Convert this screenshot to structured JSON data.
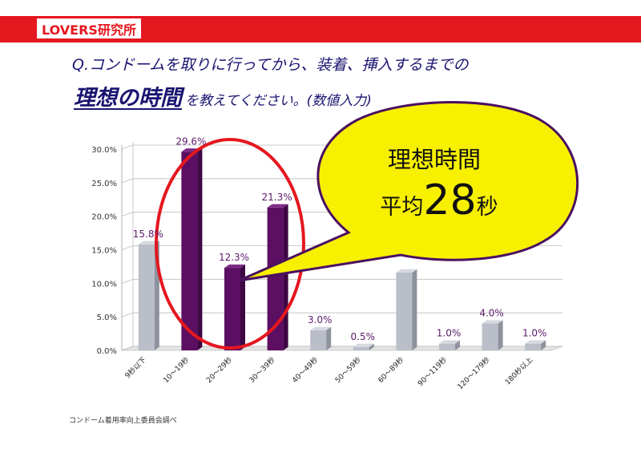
{
  "logo": {
    "text": "LOVERS研究所"
  },
  "question": {
    "line1": "Q.コンドームを取りに行ってから、装着、挿入するまでの",
    "line2_emphasis": "理想の時間",
    "line2_rest": "を教えてください。(数値入力)"
  },
  "callout": {
    "title": "理想時間",
    "prefix": "平均",
    "value": "28",
    "unit": "秒"
  },
  "source": "コンドーム着用率向上委員会調べ",
  "chart_data": {
    "type": "bar",
    "categories": [
      "9秒以下",
      "10～19秒",
      "20～29秒",
      "30～39秒",
      "40～49秒",
      "50～59秒",
      "60～89秒",
      "90～119秒",
      "120～179秒",
      "180秒以上"
    ],
    "values": [
      15.8,
      29.6,
      12.3,
      21.3,
      3.0,
      0.5,
      11.6,
      1.0,
      4.0,
      1.0
    ],
    "labels": [
      "15.8%",
      "29.6%",
      "12.3%",
      "21.3%",
      "3.0%",
      "0.5%",
      "",
      "1.0%",
      "4.0%",
      "1.0%"
    ],
    "yticks": [
      "0.0%",
      "5.0%",
      "10.0%",
      "15.0%",
      "20.0%",
      "25.0%",
      "30.0%"
    ],
    "ylim": [
      0,
      30
    ],
    "highlight": [
      1,
      2,
      3
    ],
    "colors": {
      "highlight": "#5c0e63",
      "normal": "#b9bec8",
      "label": "#5a1a6a",
      "ellipse": "#e5171f",
      "bubble": "#f7f000",
      "bubble_stroke": "#4a1060"
    },
    "grid": true
  }
}
